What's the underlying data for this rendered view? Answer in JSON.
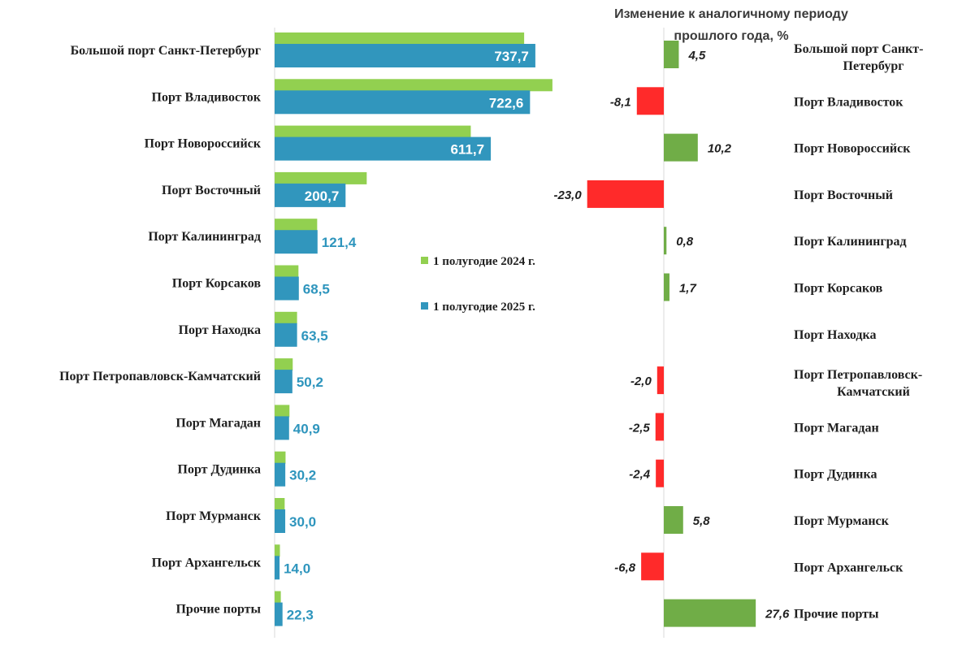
{
  "chart_data": [
    {
      "type": "bar",
      "orientation": "horizontal",
      "categories": [
        "Большой порт Санкт-Петербург",
        "Порт Владивосток",
        "Порт Новороссийск",
        "Порт Восточный",
        "Порт Калининград",
        "Порт Корсаков",
        "Порт Находка",
        "Порт Петропавловск-Камчатский",
        "Порт Магадан",
        "Порт Дудинка",
        "Порт Мурманск",
        "Порт Архангельск",
        "Прочие порты"
      ],
      "series": [
        {
          "name": "1 полугодие 2024 г.",
          "color": "#92d050",
          "values": [
            706,
            786,
            555,
            260.6,
            120.4,
            67.4,
            63.5,
            51.2,
            42.0,
            30.9,
            28.4,
            15.0,
            17.5
          ]
        },
        {
          "name": "1 полугодие 2025 г.",
          "color": "#3196bd",
          "values": [
            737.7,
            722.6,
            611.7,
            200.7,
            121.4,
            68.5,
            63.5,
            50.2,
            40.9,
            30.2,
            30.0,
            14.0,
            22.3
          ],
          "labels": [
            "737,7",
            "722,6",
            "611,7",
            "200,7",
            "121,4",
            "68,5",
            "63,5",
            "50,2",
            "40,9",
            "30,2",
            "30,0",
            "14,0",
            "22,3"
          ]
        }
      ],
      "legend": {
        "placement": "center-right",
        "items": [
          "1 полугодие 2024 г.",
          "1 полугодие 2025 г."
        ]
      },
      "xlim": [
        0,
        800
      ],
      "grid": false
    },
    {
      "type": "bar",
      "orientation": "horizontal",
      "title": "Изменение к аналогичному периоду прошлого года, %",
      "title_lines": [
        "Изменение к аналогичному периоду",
        "прошлого года, %"
      ],
      "categories": [
        [
          "Большой порт Санкт-",
          "Петербург"
        ],
        [
          "Порт Владивосток"
        ],
        [
          "Порт Новороссийск"
        ],
        [
          "Порт Восточный"
        ],
        [
          "Порт Калининград"
        ],
        [
          "Порт Корсаков"
        ],
        [
          "Порт Находка"
        ],
        [
          "Порт Петропавловск-",
          "Камчатский"
        ],
        [
          "Порт Магадан"
        ],
        [
          "Порт Дудинка"
        ],
        [
          "Порт Мурманск"
        ],
        [
          "Порт Архангельск"
        ],
        [
          "Прочие порты"
        ]
      ],
      "values": [
        4.5,
        -8.1,
        10.2,
        -23.0,
        0.8,
        1.7,
        null,
        -2.0,
        -2.5,
        -2.4,
        5.8,
        -6.8,
        27.6
      ],
      "labels": [
        "4,5",
        "-8,1",
        "10,2",
        "-23,0",
        "0,8",
        "1,7",
        "",
        "-2,0",
        "-2,5",
        "-2,4",
        "5,8",
        "-6,8",
        "27,6"
      ],
      "colors": {
        "positive": "#70ad47",
        "negative": "#ff2a2a"
      },
      "xlim": [
        -25,
        30
      ],
      "grid": false
    }
  ]
}
